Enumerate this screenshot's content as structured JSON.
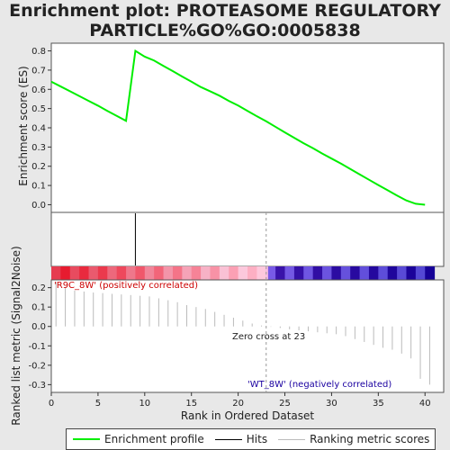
{
  "title_line1": "Enrichment plot: PROTEASOME REGULATORY",
  "title_line2": "PARTICLE%GO%GO:0005838",
  "colors": {
    "enrichment": "#00ee00",
    "hits": "#000000",
    "metric": "#bbbbbb",
    "pos": "#e8001a",
    "neg": "#1a00a0"
  },
  "legend": {
    "enrichment_label": "Enrichment profile",
    "hits_label": "Hits",
    "metric_label": "Ranking metric scores"
  },
  "annotations": {
    "pos_label": "'R9C_8W' (positively correlated)",
    "neg_label": "'WT_8W' (negatively correlated)",
    "zero_cross": "Zero cross at 23"
  },
  "chart_data": {
    "type": "line",
    "title": "Enrichment plot: PROTEASOME REGULATORY PARTICLE%GO%GO:0005838",
    "top_panel": {
      "ylabel": "Enrichment score (ES)",
      "ylim": [
        -0.04,
        0.84
      ],
      "yticks": [
        "0.0",
        "0.1",
        "0.2",
        "0.3",
        "0.4",
        "0.5",
        "0.6",
        "0.7",
        "0.8"
      ],
      "es_x": [
        0,
        1,
        2,
        3,
        4,
        5,
        6,
        7,
        8,
        9,
        10,
        11,
        12,
        13,
        14,
        15,
        16,
        17,
        18,
        19,
        20,
        21,
        22,
        23,
        24,
        25,
        26,
        27,
        28,
        29,
        30,
        31,
        32,
        33,
        34,
        35,
        36,
        37,
        38,
        39,
        40
      ],
      "es_y": [
        0.64,
        0.615,
        0.59,
        0.565,
        0.54,
        0.515,
        0.488,
        0.462,
        0.436,
        0.8,
        0.77,
        0.75,
        0.722,
        0.695,
        0.667,
        0.64,
        0.612,
        0.59,
        0.567,
        0.54,
        0.516,
        0.488,
        0.46,
        0.434,
        0.405,
        0.376,
        0.348,
        0.32,
        0.294,
        0.266,
        0.24,
        0.214,
        0.186,
        0.158,
        0.13,
        0.102,
        0.075,
        0.048,
        0.022,
        0.005,
        0.0
      ]
    },
    "hits_panel": {
      "hit_positions": [
        9
      ]
    },
    "bottom_panel": {
      "ylabel": "Ranked list metric (Signal2Noise)",
      "xlabel": "Rank in Ordered Dataset",
      "xlim": [
        0,
        42
      ],
      "xticks": [
        "0",
        "5",
        "10",
        "15",
        "20",
        "25",
        "30",
        "35",
        "40"
      ],
      "ylim": [
        -0.34,
        0.24
      ],
      "yticks": [
        "0.2",
        "0.1",
        "0.0",
        "-0.1",
        "-0.2",
        "-0.3"
      ],
      "metric_x": [
        0,
        1,
        2,
        3,
        4,
        5,
        6,
        7,
        8,
        9,
        10,
        11,
        12,
        13,
        14,
        15,
        16,
        17,
        18,
        19,
        20,
        21,
        22,
        23,
        24,
        25,
        26,
        27,
        28,
        29,
        30,
        31,
        32,
        33,
        34,
        35,
        36,
        37,
        38,
        39,
        40
      ],
      "metric_y": [
        0.23,
        0.2,
        0.185,
        0.18,
        0.175,
        0.172,
        0.168,
        0.165,
        0.162,
        0.158,
        0.155,
        0.145,
        0.135,
        0.125,
        0.11,
        0.1,
        0.09,
        0.075,
        0.06,
        0.045,
        0.03,
        0.015,
        0.005,
        -0.002,
        -0.008,
        -0.015,
        -0.02,
        -0.025,
        -0.03,
        -0.035,
        -0.04,
        -0.05,
        -0.065,
        -0.08,
        -0.095,
        -0.11,
        -0.12,
        -0.14,
        -0.165,
        -0.27,
        -0.3
      ]
    },
    "zero_cross": 23
  }
}
